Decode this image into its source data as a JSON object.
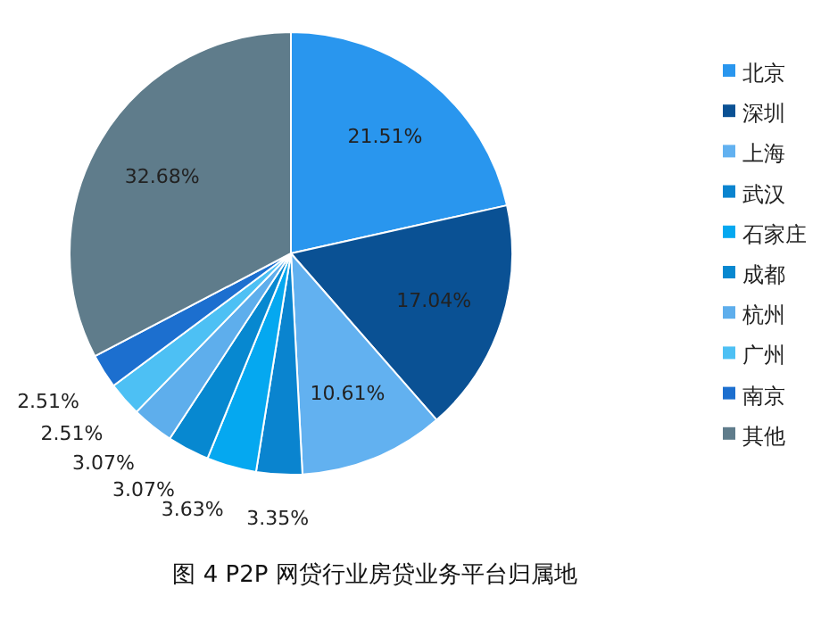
{
  "chart_data": {
    "type": "pie",
    "title": "图 4 P2P 网贷行业房贷业务平台归属地",
    "categories": [
      "北京",
      "深圳",
      "上海",
      "武汉",
      "石家庄",
      "成都",
      "杭州",
      "广州",
      "南京",
      "其他"
    ],
    "values": [
      21.51,
      17.04,
      10.61,
      3.35,
      3.63,
      3.07,
      3.07,
      2.51,
      2.51,
      32.68
    ],
    "colors": [
      "#2996ee",
      "#0a5194",
      "#62b1f0",
      "#0a84cf",
      "#05a8f0",
      "#0788d0",
      "#5eaeec",
      "#4dc0f4",
      "#1c6fcf",
      "#5f7c8b"
    ],
    "value_labels": [
      "21.51%",
      "17.04%",
      "10.61%",
      "3.35%",
      "3.63%",
      "3.07%",
      "3.07%",
      "2.51%",
      "2.51%",
      "32.68%"
    ],
    "legend": "right"
  }
}
